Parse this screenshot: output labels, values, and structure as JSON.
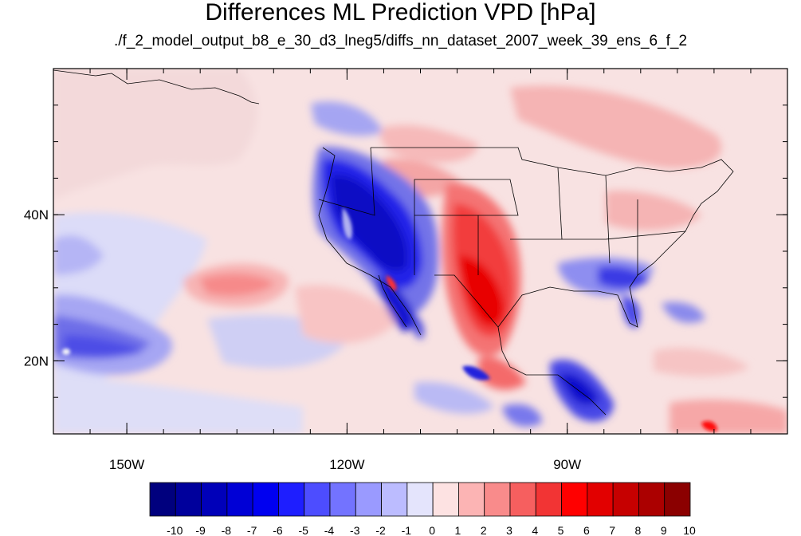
{
  "title": "Differences ML Prediction VPD [hPa]",
  "subtitle": "./f_2_model_output_b8_e_30_d3_lneg5/diffs_nn_dataset_2007_week_39_ens_6_f_2",
  "map": {
    "lon_range": [
      -160,
      -60
    ],
    "lat_range": [
      10,
      60
    ],
    "lon_ticks": [
      {
        "value": -150,
        "label": "150W"
      },
      {
        "value": -120,
        "label": "120W"
      },
      {
        "value": -90,
        "label": "90W"
      }
    ],
    "lat_ticks": [
      {
        "value": 40,
        "label": "40N"
      },
      {
        "value": 20,
        "label": "20N"
      }
    ],
    "background_color": "#f8e2e2"
  },
  "colorbar": {
    "labels": [
      "-10",
      "-9",
      "-8",
      "-7",
      "-6",
      "-5",
      "-4",
      "-3",
      "-2",
      "-1",
      "0",
      "1",
      "2",
      "3",
      "4",
      "5",
      "6",
      "7",
      "8",
      "9",
      "10"
    ],
    "colors": [
      "#00007e",
      "#00009c",
      "#0000b9",
      "#0000d6",
      "#0000f0",
      "#1e1eff",
      "#4d4dff",
      "#7373ff",
      "#9a9aff",
      "#bcbcff",
      "#e4e4fc",
      "#fde2e2",
      "#fcb4b4",
      "#f98b8b",
      "#f65f5f",
      "#f23434",
      "#ff0000",
      "#e20000",
      "#c60000",
      "#ab0000",
      "#8b0000"
    ]
  }
}
